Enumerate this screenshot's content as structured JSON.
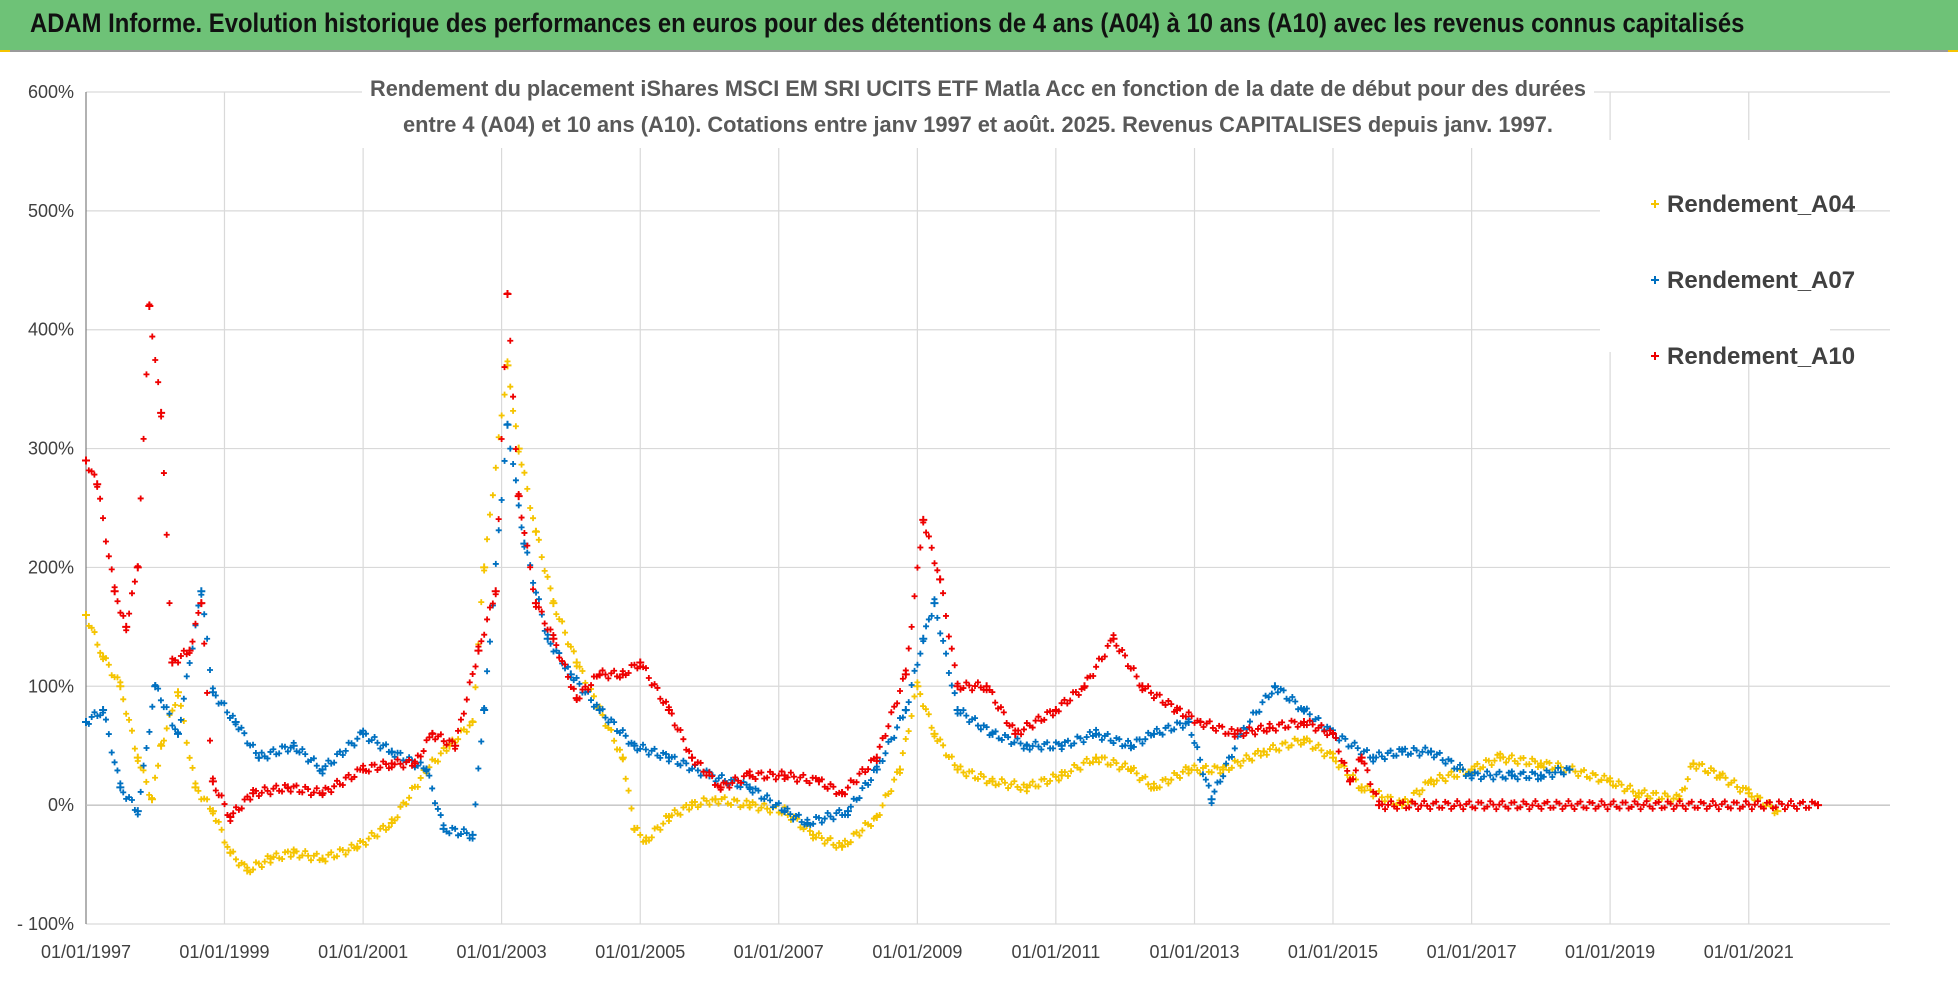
{
  "banner": {
    "title": "ADAM Informe. Evolution historique des performances en euros pour des détentions de 4 ans (A04) à 10 ans (A10) avec les revenus connus capitalisés",
    "background": "#6ec277"
  },
  "chart_data": {
    "type": "scatter",
    "title_lines": [
      "Rendement du placement iShares MSCI EM SRI UCITS ETF Matla Acc en fonction de la date de début pour des durées",
      "entre 4 (A04) et 10 ans (A10). Cotations entre janv 1997 et août. 2025. Revenus CAPITALISES depuis janv. 1997."
    ],
    "xlabel": "",
    "ylabel": "",
    "x_range": [
      "1997-01-01",
      "2022-01-01"
    ],
    "ylim": [
      -100,
      600
    ],
    "y_ticks": [
      -100,
      0,
      100,
      200,
      300,
      400,
      500,
      600
    ],
    "y_tick_labels": [
      "- 100%",
      "0%",
      "100%",
      "200%",
      "300%",
      "400%",
      "500%",
      "600%"
    ],
    "x_ticks": [
      "1997-01-01",
      "1999-01-01",
      "2001-01-01",
      "2003-01-01",
      "2005-01-01",
      "2007-01-01",
      "2009-01-01",
      "2011-01-01",
      "2013-01-01",
      "2015-01-01",
      "2017-01-01",
      "2019-01-01",
      "2021-01-01"
    ],
    "x_tick_labels": [
      "01/01/1997",
      "01/01/1999",
      "01/01/2001",
      "01/01/2003",
      "01/01/2005",
      "01/01/2007",
      "01/01/2009",
      "01/01/2011",
      "01/01/2013",
      "01/01/2015",
      "01/01/2017",
      "01/01/2019",
      "01/01/2021"
    ],
    "grid": true,
    "legend_position": "top-right",
    "marker": "+",
    "series": [
      {
        "name": "Rendement_A04",
        "color": "#f5c400",
        "points": [
          [
            "1997-01-01",
            160
          ],
          [
            "1997-04-01",
            125
          ],
          [
            "1997-07-01",
            100
          ],
          [
            "1997-10-01",
            40
          ],
          [
            "1997-12-15",
            5
          ],
          [
            "1998-02-01",
            50
          ],
          [
            "1998-05-01",
            95
          ],
          [
            "1998-08-01",
            15
          ],
          [
            "1998-11-01",
            -5
          ],
          [
            "1999-02-01",
            -40
          ],
          [
            "1999-05-01",
            -55
          ],
          [
            "1999-09-01",
            -45
          ],
          [
            "2000-01-01",
            -40
          ],
          [
            "2000-06-01",
            -45
          ],
          [
            "2000-12-01",
            -35
          ],
          [
            "2001-06-01",
            -15
          ],
          [
            "2001-12-01",
            30
          ],
          [
            "2002-04-01",
            50
          ],
          [
            "2002-08-01",
            70
          ],
          [
            "2002-10-01",
            200
          ],
          [
            "2003-02-01",
            370
          ],
          [
            "2003-04-01",
            300
          ],
          [
            "2003-07-01",
            230
          ],
          [
            "2003-10-01",
            170
          ],
          [
            "2004-02-01",
            120
          ],
          [
            "2004-06-01",
            80
          ],
          [
            "2004-10-01",
            40
          ],
          [
            "2004-12-01",
            -20
          ],
          [
            "2005-02-01",
            -30
          ],
          [
            "2005-06-01",
            -10
          ],
          [
            "2005-10-01",
            0
          ],
          [
            "2006-02-01",
            5
          ],
          [
            "2006-08-01",
            0
          ],
          [
            "2007-02-01",
            -5
          ],
          [
            "2007-07-01",
            -25
          ],
          [
            "2007-12-01",
            -35
          ],
          [
            "2008-06-01",
            -10
          ],
          [
            "2008-10-01",
            30
          ],
          [
            "2009-01-01",
            100
          ],
          [
            "2009-04-01",
            60
          ],
          [
            "2009-08-01",
            30
          ],
          [
            "2010-02-01",
            20
          ],
          [
            "2010-08-01",
            15
          ],
          [
            "2011-02-01",
            25
          ],
          [
            "2011-08-01",
            40
          ],
          [
            "2012-02-01",
            30
          ],
          [
            "2012-06-01",
            15
          ],
          [
            "2012-12-01",
            30
          ],
          [
            "2013-06-01",
            30
          ],
          [
            "2014-01-01",
            45
          ],
          [
            "2014-08-01",
            55
          ],
          [
            "2015-01-01",
            40
          ],
          [
            "2015-06-01",
            15
          ],
          [
            "2016-01-01",
            0
          ],
          [
            "2016-06-01",
            20
          ],
          [
            "2017-01-01",
            30
          ],
          [
            "2017-06-01",
            40
          ],
          [
            "2018-01-01",
            35
          ],
          [
            "2018-06-01",
            30
          ],
          [
            "2019-01-01",
            20
          ],
          [
            "2019-06-01",
            10
          ],
          [
            "2020-01-01",
            5
          ],
          [
            "2020-03-15",
            35
          ],
          [
            "2020-08-01",
            25
          ],
          [
            "2021-01-01",
            10
          ],
          [
            "2021-06-01",
            -5
          ]
        ]
      },
      {
        "name": "Rendement_A07",
        "color": "#0070c0",
        "points": [
          [
            "1997-01-01",
            70
          ],
          [
            "1997-04-01",
            80
          ],
          [
            "1997-07-01",
            15
          ],
          [
            "1997-10-01",
            -5
          ],
          [
            "1998-01-01",
            100
          ],
          [
            "1998-05-01",
            60
          ],
          [
            "1998-09-01",
            180
          ],
          [
            "1998-11-01",
            95
          ],
          [
            "1999-03-01",
            70
          ],
          [
            "1999-07-01",
            40
          ],
          [
            "2000-01-01",
            50
          ],
          [
            "2000-06-01",
            30
          ],
          [
            "2001-01-01",
            60
          ],
          [
            "2001-06-01",
            45
          ],
          [
            "2001-12-01",
            30
          ],
          [
            "2002-03-01",
            -20
          ],
          [
            "2002-08-01",
            -25
          ],
          [
            "2002-10-01",
            80
          ],
          [
            "2003-02-01",
            320
          ],
          [
            "2003-05-01",
            220
          ],
          [
            "2003-09-01",
            140
          ],
          [
            "2004-01-01",
            110
          ],
          [
            "2004-06-01",
            80
          ],
          [
            "2004-12-01",
            50
          ],
          [
            "2005-06-01",
            40
          ],
          [
            "2006-01-01",
            25
          ],
          [
            "2006-08-01",
            15
          ],
          [
            "2007-02-01",
            -5
          ],
          [
            "2007-06-01",
            -15
          ],
          [
            "2008-01-01",
            -5
          ],
          [
            "2008-06-01",
            30
          ],
          [
            "2008-11-01",
            80
          ],
          [
            "2009-02-01",
            140
          ],
          [
            "2009-04-01",
            170
          ],
          [
            "2009-08-01",
            80
          ],
          [
            "2010-02-01",
            60
          ],
          [
            "2010-08-01",
            50
          ],
          [
            "2011-02-01",
            50
          ],
          [
            "2011-08-01",
            60
          ],
          [
            "2012-02-01",
            50
          ],
          [
            "2012-06-01",
            60
          ],
          [
            "2012-12-01",
            70
          ],
          [
            "2013-04-01",
            5
          ],
          [
            "2013-09-01",
            60
          ],
          [
            "2014-03-01",
            100
          ],
          [
            "2014-08-01",
            80
          ],
          [
            "2015-01-01",
            60
          ],
          [
            "2015-08-01",
            40
          ],
          [
            "2016-01-01",
            45
          ],
          [
            "2016-06-01",
            45
          ],
          [
            "2017-01-01",
            25
          ],
          [
            "2017-08-01",
            25
          ],
          [
            "2018-01-01",
            25
          ],
          [
            "2018-06-01",
            30
          ]
        ]
      },
      {
        "name": "Rendement_A10",
        "color": "#ee0000",
        "points": [
          [
            "1997-01-01",
            290
          ],
          [
            "1997-03-01",
            270
          ],
          [
            "1997-06-01",
            180
          ],
          [
            "1997-08-01",
            150
          ],
          [
            "1997-10-01",
            200
          ],
          [
            "1997-12-01",
            420
          ],
          [
            "1998-02-01",
            330
          ],
          [
            "1998-04-01",
            120
          ],
          [
            "1998-07-01",
            130
          ],
          [
            "1998-09-01",
            170
          ],
          [
            "1998-11-01",
            20
          ],
          [
            "1999-02-01",
            -10
          ],
          [
            "1999-06-01",
            10
          ],
          [
            "1999-12-01",
            15
          ],
          [
            "2000-06-01",
            10
          ],
          [
            "2001-01-01",
            30
          ],
          [
            "2001-06-01",
            35
          ],
          [
            "2001-10-01",
            35
          ],
          [
            "2002-01-01",
            60
          ],
          [
            "2002-05-01",
            50
          ],
          [
            "2002-09-01",
            130
          ],
          [
            "2002-12-01",
            180
          ],
          [
            "2003-02-01",
            430
          ],
          [
            "2003-04-01",
            260
          ],
          [
            "2003-07-01",
            170
          ],
          [
            "2003-10-01",
            140
          ],
          [
            "2004-02-01",
            90
          ],
          [
            "2004-06-01",
            110
          ],
          [
            "2004-10-01",
            110
          ],
          [
            "2005-01-01",
            120
          ],
          [
            "2005-06-01",
            80
          ],
          [
            "2005-10-01",
            40
          ],
          [
            "2006-03-01",
            15
          ],
          [
            "2006-08-01",
            25
          ],
          [
            "2007-02-01",
            25
          ],
          [
            "2007-08-01",
            20
          ],
          [
            "2007-12-01",
            10
          ],
          [
            "2008-06-01",
            40
          ],
          [
            "2008-11-01",
            110
          ],
          [
            "2009-02-01",
            240
          ],
          [
            "2009-05-01",
            190
          ],
          [
            "2009-08-01",
            100
          ],
          [
            "2010-01-01",
            100
          ],
          [
            "2010-06-01",
            60
          ],
          [
            "2011-01-01",
            80
          ],
          [
            "2011-06-01",
            100
          ],
          [
            "2011-11-01",
            140
          ],
          [
            "2012-04-01",
            100
          ],
          [
            "2012-10-01",
            80
          ],
          [
            "2013-02-01",
            70
          ],
          [
            "2013-08-01",
            60
          ],
          [
            "2014-02-01",
            65
          ],
          [
            "2014-08-01",
            70
          ],
          [
            "2015-01-01",
            60
          ],
          [
            "2015-04-01",
            20
          ],
          [
            "2015-06-01",
            40
          ],
          [
            "2015-09-01",
            0
          ],
          [
            "2022-01-01",
            0
          ]
        ]
      }
    ]
  }
}
